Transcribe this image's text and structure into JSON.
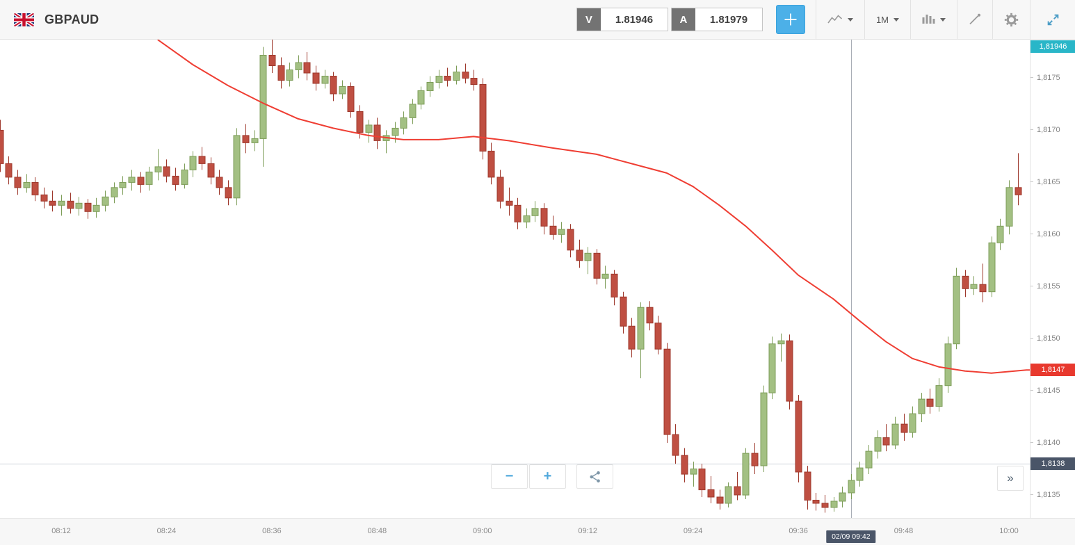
{
  "header": {
    "symbol": "GBPAUD",
    "sell": {
      "label": "V",
      "value": "1.81946"
    },
    "buy": {
      "label": "A",
      "value": "1.81979"
    },
    "timeframe_label": "1M"
  },
  "controls": {
    "zoom_out_label": "−",
    "zoom_in_label": "+",
    "collapse_label": "»"
  },
  "axes": {
    "y_ticks": [
      {
        "price": 1.8175,
        "label": "1,8175"
      },
      {
        "price": 1.817,
        "label": "1,8170"
      },
      {
        "price": 1.8165,
        "label": "1,8165"
      },
      {
        "price": 1.816,
        "label": "1,8160"
      },
      {
        "price": 1.8155,
        "label": "1,8155"
      },
      {
        "price": 1.815,
        "label": "1,8150"
      },
      {
        "price": 1.8145,
        "label": "1,8145"
      },
      {
        "price": 1.814,
        "label": "1,8140"
      },
      {
        "price": 1.8135,
        "label": "1,8135"
      }
    ],
    "x_ticks": [
      {
        "index": 7,
        "label": "08:12"
      },
      {
        "index": 19,
        "label": "08:24"
      },
      {
        "index": 31,
        "label": "08:36"
      },
      {
        "index": 43,
        "label": "08:48"
      },
      {
        "index": 55,
        "label": "09:00"
      },
      {
        "index": 67,
        "label": "09:12"
      },
      {
        "index": 79,
        "label": "09:24"
      },
      {
        "index": 91,
        "label": "09:36"
      },
      {
        "index": 103,
        "label": "09:48"
      },
      {
        "index": 115,
        "label": "10:00"
      }
    ]
  },
  "badges": {
    "current_price": {
      "label": "1,81946",
      "bg": "#29b6c8"
    },
    "ma_value": {
      "label": "1,8147",
      "bg": "#e8392e"
    },
    "level": {
      "label": "1,8138",
      "bg": "#4a5568"
    },
    "crosshair_time": {
      "label": "02/09 09:42",
      "bg": "#4a5568"
    }
  },
  "chart_data": {
    "type": "candlestick",
    "symbol": "GBPAUD",
    "interval": "1m",
    "date_label": "02/09",
    "start_time": "08:05",
    "ohlc_format": [
      "open",
      "high",
      "low",
      "close"
    ],
    "price_range": {
      "top": 1.81787,
      "bottom": 1.81328
    },
    "x_map": {
      "ref_index": 7,
      "ref_x": 88,
      "spacing": 12.62
    },
    "current_price": 1.81946,
    "ma_last_value": 1.8147,
    "level_price": 1.8138,
    "crosshair_index": 97,
    "candles": [
      [
        1.817,
        1.8171,
        1.8166,
        1.81668
      ],
      [
        1.81668,
        1.81675,
        1.81648,
        1.81655
      ],
      [
        1.81655,
        1.81662,
        1.81638,
        1.81645
      ],
      [
        1.81645,
        1.81658,
        1.8164,
        1.8165
      ],
      [
        1.8165,
        1.81655,
        1.81632,
        1.81638
      ],
      [
        1.81638,
        1.81645,
        1.81625,
        1.81632
      ],
      [
        1.81632,
        1.81642,
        1.81622,
        1.81628
      ],
      [
        1.81628,
        1.81638,
        1.81618,
        1.81632
      ],
      [
        1.81632,
        1.8164,
        1.8162,
        1.81625
      ],
      [
        1.81625,
        1.81636,
        1.81618,
        1.8163
      ],
      [
        1.8163,
        1.81634,
        1.81615,
        1.81622
      ],
      [
        1.81622,
        1.81635,
        1.81616,
        1.81628
      ],
      [
        1.81628,
        1.81642,
        1.81622,
        1.81636
      ],
      [
        1.81636,
        1.8165,
        1.8163,
        1.81645
      ],
      [
        1.81645,
        1.81656,
        1.81638,
        1.8165
      ],
      [
        1.8165,
        1.81662,
        1.81642,
        1.81655
      ],
      [
        1.81655,
        1.8166,
        1.8164,
        1.81648
      ],
      [
        1.81648,
        1.81665,
        1.81642,
        1.8166
      ],
      [
        1.8166,
        1.81682,
        1.81652,
        1.81665
      ],
      [
        1.81665,
        1.81672,
        1.8165,
        1.81656
      ],
      [
        1.81656,
        1.81664,
        1.81642,
        1.81648
      ],
      [
        1.81648,
        1.81668,
        1.81644,
        1.81662
      ],
      [
        1.81662,
        1.8168,
        1.81655,
        1.81675
      ],
      [
        1.81675,
        1.81684,
        1.81662,
        1.81668
      ],
      [
        1.81668,
        1.81674,
        1.81648,
        1.81655
      ],
      [
        1.81655,
        1.81662,
        1.81638,
        1.81645
      ],
      [
        1.81645,
        1.81652,
        1.81628,
        1.81635
      ],
      [
        1.81635,
        1.81702,
        1.81628,
        1.81695
      ],
      [
        1.81695,
        1.81706,
        1.81678,
        1.81688
      ],
      [
        1.81688,
        1.817,
        1.8168,
        1.81692
      ],
      [
        1.81692,
        1.8178,
        1.81665,
        1.81772
      ],
      [
        1.81772,
        1.8179,
        1.81755,
        1.81762
      ],
      [
        1.81762,
        1.8177,
        1.8174,
        1.81748
      ],
      [
        1.81748,
        1.81765,
        1.81742,
        1.81758
      ],
      [
        1.81758,
        1.81772,
        1.8175,
        1.81765
      ],
      [
        1.81765,
        1.81775,
        1.81748,
        1.81755
      ],
      [
        1.81755,
        1.81762,
        1.81738,
        1.81745
      ],
      [
        1.81745,
        1.81758,
        1.8174,
        1.81752
      ],
      [
        1.81752,
        1.81756,
        1.81728,
        1.81735
      ],
      [
        1.81735,
        1.81748,
        1.8173,
        1.81742
      ],
      [
        1.81742,
        1.81746,
        1.81712,
        1.81718
      ],
      [
        1.81718,
        1.81724,
        1.81692,
        1.81698
      ],
      [
        1.81698,
        1.8171,
        1.81688,
        1.81705
      ],
      [
        1.81705,
        1.81712,
        1.81682,
        1.8169
      ],
      [
        1.8169,
        1.817,
        1.81678,
        1.81695
      ],
      [
        1.81695,
        1.81708,
        1.81688,
        1.81702
      ],
      [
        1.81702,
        1.81718,
        1.81696,
        1.81712
      ],
      [
        1.81712,
        1.8173,
        1.81706,
        1.81725
      ],
      [
        1.81725,
        1.81742,
        1.8172,
        1.81738
      ],
      [
        1.81738,
        1.81752,
        1.81732,
        1.81746
      ],
      [
        1.81746,
        1.81758,
        1.8174,
        1.81752
      ],
      [
        1.81752,
        1.8176,
        1.81742,
        1.81748
      ],
      [
        1.81748,
        1.81762,
        1.81744,
        1.81756
      ],
      [
        1.81756,
        1.81764,
        1.81745,
        1.8175
      ],
      [
        1.8175,
        1.81758,
        1.81738,
        1.81744
      ],
      [
        1.81744,
        1.8175,
        1.81672,
        1.8168
      ],
      [
        1.8168,
        1.81688,
        1.81648,
        1.81655
      ],
      [
        1.81655,
        1.81662,
        1.81625,
        1.81632
      ],
      [
        1.81632,
        1.81645,
        1.81618,
        1.81628
      ],
      [
        1.81628,
        1.81635,
        1.81605,
        1.81612
      ],
      [
        1.81612,
        1.81625,
        1.81606,
        1.81618
      ],
      [
        1.81618,
        1.81632,
        1.81612,
        1.81625
      ],
      [
        1.81625,
        1.8163,
        1.816,
        1.81608
      ],
      [
        1.81608,
        1.81618,
        1.81595,
        1.816
      ],
      [
        1.816,
        1.81612,
        1.81592,
        1.81605
      ],
      [
        1.81605,
        1.8161,
        1.81578,
        1.81585
      ],
      [
        1.81585,
        1.81595,
        1.81568,
        1.81575
      ],
      [
        1.81575,
        1.81588,
        1.81562,
        1.81582
      ],
      [
        1.81582,
        1.81586,
        1.81552,
        1.81558
      ],
      [
        1.81558,
        1.8157,
        1.81548,
        1.81562
      ],
      [
        1.81562,
        1.81566,
        1.81532,
        1.8154
      ],
      [
        1.8154,
        1.81545,
        1.81505,
        1.81512
      ],
      [
        1.81512,
        1.8152,
        1.81482,
        1.8149
      ],
      [
        1.8149,
        1.81535,
        1.81462,
        1.8153
      ],
      [
        1.8153,
        1.81536,
        1.81508,
        1.81515
      ],
      [
        1.81515,
        1.81522,
        1.81485,
        1.8149
      ],
      [
        1.8149,
        1.81496,
        1.814,
        1.81408
      ],
      [
        1.81408,
        1.81418,
        1.8138,
        1.81388
      ],
      [
        1.81388,
        1.81395,
        1.81362,
        1.8137
      ],
      [
        1.8137,
        1.81382,
        1.81358,
        1.81375
      ],
      [
        1.81375,
        1.8138,
        1.81348,
        1.81355
      ],
      [
        1.81355,
        1.81368,
        1.81342,
        1.81348
      ],
      [
        1.81348,
        1.81355,
        1.81336,
        1.81342
      ],
      [
        1.81342,
        1.81362,
        1.81338,
        1.81358
      ],
      [
        1.81358,
        1.81372,
        1.81345,
        1.8135
      ],
      [
        1.8135,
        1.81395,
        1.81346,
        1.8139
      ],
      [
        1.8139,
        1.814,
        1.8137,
        1.81378
      ],
      [
        1.81378,
        1.81455,
        1.81372,
        1.81448
      ],
      [
        1.81448,
        1.81502,
        1.81442,
        1.81495
      ],
      [
        1.81495,
        1.81505,
        1.81478,
        1.81498
      ],
      [
        1.81498,
        1.81504,
        1.81432,
        1.8144
      ],
      [
        1.8144,
        1.81446,
        1.81362,
        1.81372
      ],
      [
        1.81372,
        1.81378,
        1.81336,
        1.81345
      ],
      [
        1.81345,
        1.81352,
        1.81335,
        1.81342
      ],
      [
        1.81342,
        1.8135,
        1.81333,
        1.81338
      ],
      [
        1.81338,
        1.81348,
        1.81334,
        1.81344
      ],
      [
        1.81344,
        1.81358,
        1.81338,
        1.81352
      ],
      [
        1.81352,
        1.8137,
        1.81346,
        1.81364
      ],
      [
        1.81364,
        1.81382,
        1.81358,
        1.81376
      ],
      [
        1.81376,
        1.81398,
        1.8137,
        1.81392
      ],
      [
        1.81392,
        1.81412,
        1.81385,
        1.81405
      ],
      [
        1.81405,
        1.81418,
        1.81392,
        1.81398
      ],
      [
        1.81398,
        1.81425,
        1.81394,
        1.81418
      ],
      [
        1.81418,
        1.81428,
        1.81402,
        1.8141
      ],
      [
        1.8141,
        1.81435,
        1.81405,
        1.81428
      ],
      [
        1.81428,
        1.81448,
        1.8142,
        1.81442
      ],
      [
        1.81442,
        1.81452,
        1.81428,
        1.81435
      ],
      [
        1.81435,
        1.81462,
        1.8143,
        1.81455
      ],
      [
        1.81455,
        1.81502,
        1.81448,
        1.81495
      ],
      [
        1.81495,
        1.81568,
        1.8149,
        1.8156
      ],
      [
        1.8156,
        1.81566,
        1.8154,
        1.81548
      ],
      [
        1.81548,
        1.8156,
        1.81542,
        1.81552
      ],
      [
        1.81552,
        1.81572,
        1.81535,
        1.81545
      ],
      [
        1.81545,
        1.81598,
        1.8154,
        1.81592
      ],
      [
        1.81592,
        1.81615,
        1.81585,
        1.81608
      ],
      [
        1.81608,
        1.81652,
        1.816,
        1.81645
      ],
      [
        1.81645,
        1.81678,
        1.81628,
        1.81638
      ]
    ],
    "ma_points": [
      [
        18,
        1.81787
      ],
      [
        22,
        1.81763
      ],
      [
        26,
        1.81743
      ],
      [
        30,
        1.81726
      ],
      [
        34,
        1.81711
      ],
      [
        38,
        1.81702
      ],
      [
        42,
        1.81695
      ],
      [
        46,
        1.81691
      ],
      [
        50,
        1.81691
      ],
      [
        54,
        1.81694
      ],
      [
        58,
        1.8169
      ],
      [
        63,
        1.81683
      ],
      [
        68,
        1.81677
      ],
      [
        72,
        1.81668
      ],
      [
        76,
        1.81659
      ],
      [
        79,
        1.81646
      ],
      [
        82,
        1.81628
      ],
      [
        85,
        1.81608
      ],
      [
        88,
        1.81585
      ],
      [
        91,
        1.81561
      ],
      [
        95,
        1.81538
      ],
      [
        98,
        1.81517
      ],
      [
        101,
        1.81497
      ],
      [
        104,
        1.81481
      ],
      [
        107,
        1.81473
      ],
      [
        110,
        1.81469
      ],
      [
        113,
        1.81467
      ],
      [
        117,
        1.8147
      ]
    ],
    "colors": {
      "up": "#a3c083",
      "up_border": "#7d9d58",
      "down": "#bf4f42",
      "down_border": "#9e382c",
      "ma": "#ef3e33",
      "crosshair": "#a8adb5",
      "level_line": "#ccd1d9",
      "accent_blue": "#4cb0e8"
    }
  }
}
